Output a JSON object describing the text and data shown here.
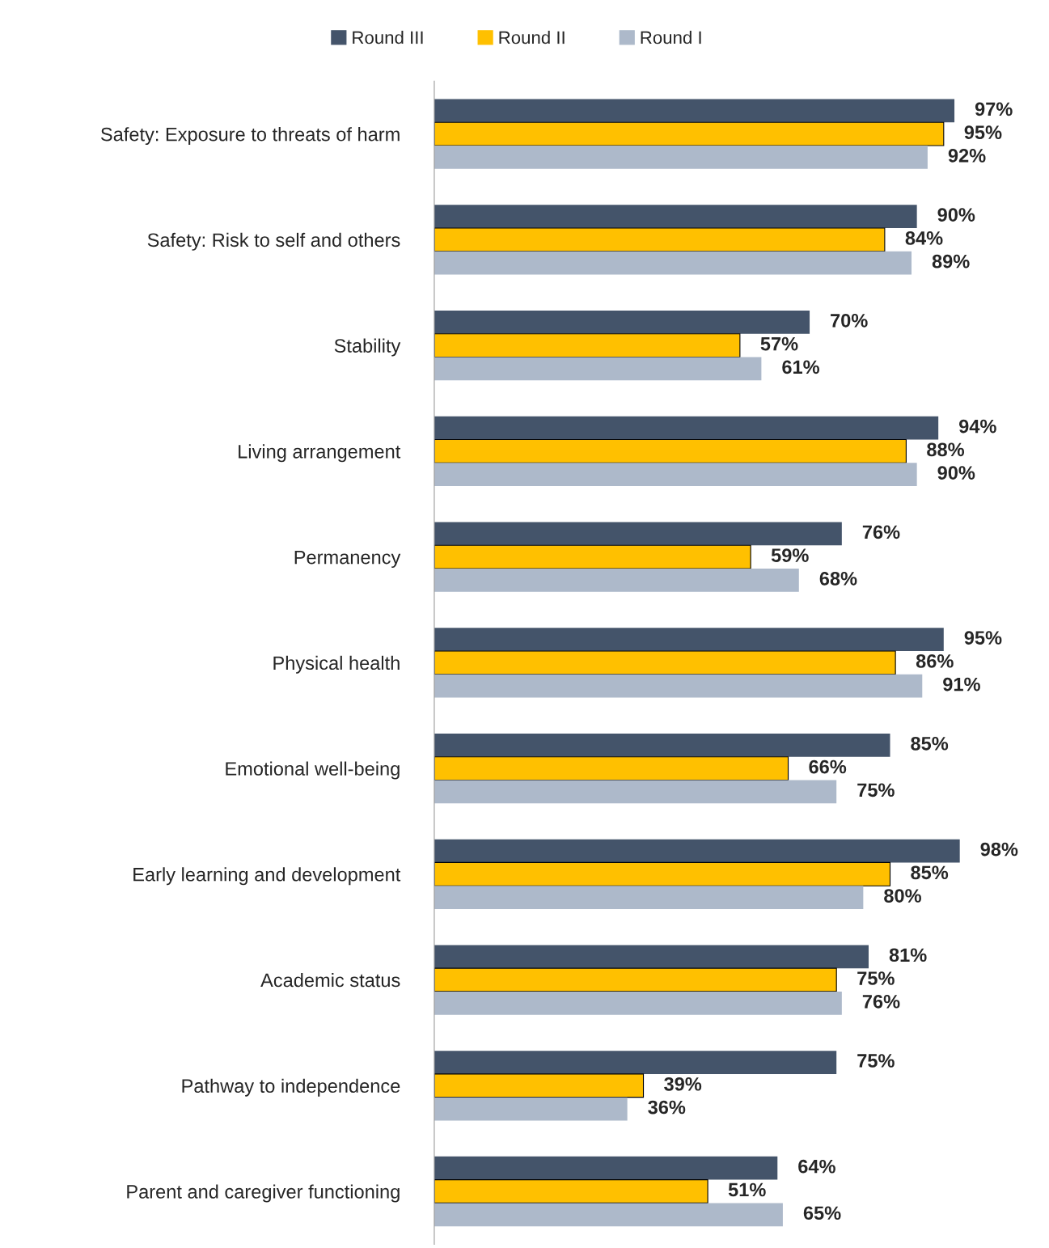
{
  "chart_data": {
    "type": "bar",
    "orientation": "horizontal",
    "legend": "top",
    "grid": false,
    "tick_labels": "y",
    "categories": [
      "Safety: Exposure to threats of harm",
      "Safety: Risk to self and others",
      "Stability",
      "Living arrangement",
      "Permanency",
      "Physical health",
      "Emotional well-being",
      "Early learning and development",
      "Academic status",
      "Pathway to independence",
      "Parent and caregiver functioning"
    ],
    "series": [
      {
        "name": "Round III",
        "color": "#44546a",
        "values": [
          97,
          90,
          70,
          94,
          76,
          95,
          85,
          98,
          81,
          75,
          64
        ],
        "value_labels": [
          "97%",
          "90%",
          "70%",
          "94%",
          "76%",
          "95%",
          "85%",
          "98%",
          "81%",
          "75%",
          "64%"
        ]
      },
      {
        "name": "Round II",
        "color": "#ffc000",
        "values": [
          95,
          84,
          57,
          88,
          59,
          86,
          66,
          85,
          75,
          39,
          51
        ],
        "value_labels": [
          "95%",
          "84%",
          "57%",
          "88%",
          "59%",
          "86%",
          "66%",
          "85%",
          "75%",
          "39%",
          "51%"
        ]
      },
      {
        "name": "Round I",
        "color": "#adb9ca",
        "values": [
          92,
          89,
          61,
          90,
          68,
          91,
          75,
          80,
          76,
          36,
          65
        ],
        "value_labels": [
          "92%",
          "89%",
          "61%",
          "90%",
          "68%",
          "91%",
          "75%",
          "80%",
          "76%",
          "36%",
          "65%"
        ]
      }
    ]
  }
}
